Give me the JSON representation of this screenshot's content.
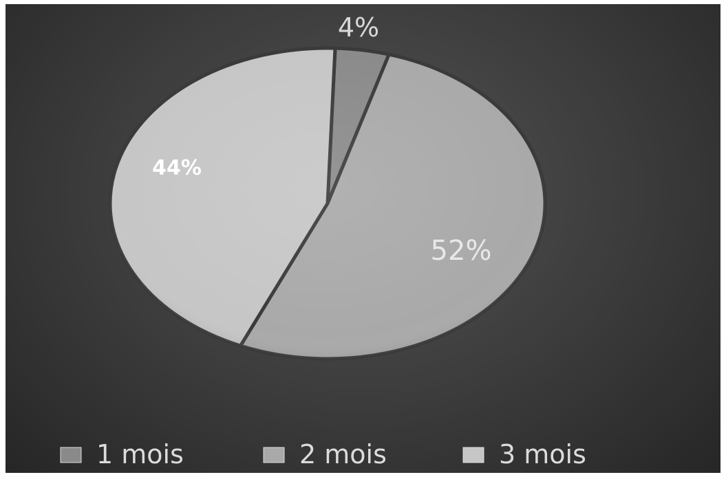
{
  "chart_data": {
    "type": "pie",
    "title": "",
    "legend": "bottom",
    "slices": [
      {
        "name": "1 mois",
        "value": 4,
        "label": "4%",
        "color": "#8a8a8a"
      },
      {
        "name": "2 mois",
        "value": 52,
        "label": "52%",
        "color": "#a9a9a9"
      },
      {
        "name": "3 mois",
        "value": 44,
        "label": "44%",
        "color": "#c6c6c6"
      }
    ]
  }
}
